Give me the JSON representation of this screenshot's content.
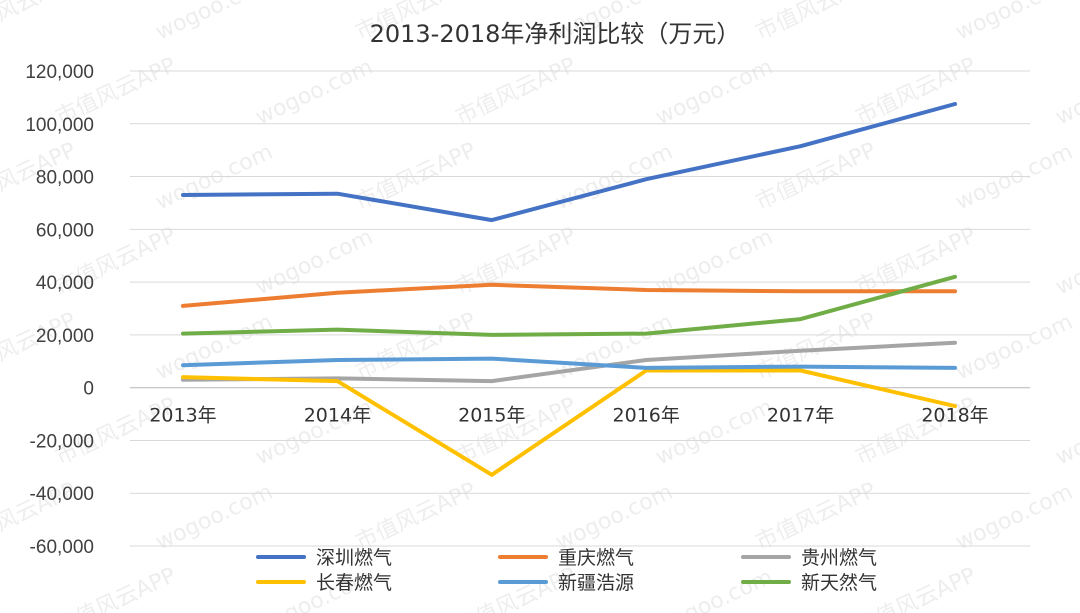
{
  "chart_data": {
    "type": "line",
    "title": "2013-2018年净利润比较（万元）",
    "categories": [
      "2013年",
      "2014年",
      "2015年",
      "2016年",
      "2017年",
      "2018年"
    ],
    "ylim": [
      -60000,
      120000
    ],
    "yticks": [
      120000,
      100000,
      80000,
      60000,
      40000,
      20000,
      0,
      -20000,
      -40000,
      -60000
    ],
    "ytick_labels": [
      "120,000",
      "100,000",
      "80,000",
      "60,000",
      "40,000",
      "20,000",
      "0",
      "-20,000",
      "-40,000",
      "-60,000"
    ],
    "grid": true,
    "legend_position": "bottom",
    "series": [
      {
        "name": "深圳燃气",
        "color": "#4472C4",
        "values": [
          73000,
          73500,
          63500,
          79000,
          91500,
          107500
        ]
      },
      {
        "name": "重庆燃气",
        "color": "#ED7D31",
        "values": [
          31000,
          36000,
          39000,
          37000,
          36500,
          36500
        ]
      },
      {
        "name": "贵州燃气",
        "color": "#A5A5A5",
        "values": [
          3000,
          3500,
          2500,
          10500,
          14000,
          17000
        ]
      },
      {
        "name": "长春燃气",
        "color": "#FFC000",
        "values": [
          4000,
          2500,
          -33000,
          6500,
          6500,
          -7000
        ]
      },
      {
        "name": "新疆浩源",
        "color": "#5B9BD5",
        "values": [
          8500,
          10500,
          11000,
          7500,
          8000,
          7500
        ]
      },
      {
        "name": "新天然气",
        "color": "#70AD47",
        "values": [
          20500,
          22000,
          20000,
          20500,
          26000,
          42000
        ]
      }
    ]
  },
  "watermark": {
    "texts": [
      "市值风云APP",
      "wogoo.com"
    ]
  }
}
